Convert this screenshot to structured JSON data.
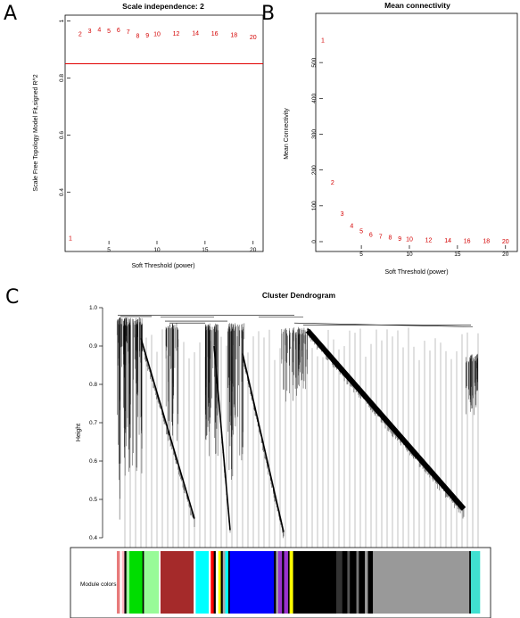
{
  "panels": {
    "a": "A",
    "b": "B",
    "c": "C"
  },
  "chart_data": [
    {
      "type": "scatter",
      "title": "Scale independence: 2",
      "xlabel": "Soft Threshold (power)",
      "ylabel": "Scale Free Topology Model Fit,signed R^2",
      "xlim": [
        1,
        20.3
      ],
      "ylim": [
        0.23,
        1.0
      ],
      "xticks": [
        5,
        10,
        15,
        20
      ],
      "yticks": [
        0.4,
        0.6,
        0.8,
        1.0
      ],
      "marker": "point labels",
      "x": [
        1,
        2,
        3,
        4,
        5,
        6,
        7,
        8,
        9,
        10,
        12,
        14,
        16,
        18,
        20
      ],
      "y": [
        0.24,
        0.955,
        0.965,
        0.97,
        0.965,
        0.968,
        0.962,
        0.948,
        0.95,
        0.955,
        0.957,
        0.958,
        0.957,
        0.952,
        0.943
      ],
      "point_labels": [
        "1",
        "2",
        "3",
        "4",
        "5",
        "6",
        "7",
        "8",
        "9",
        "10",
        "12",
        "14",
        "16",
        "18",
        "20"
      ],
      "hline": 0.85,
      "hline_color": "#e00000",
      "point_color": "#d40000"
    },
    {
      "type": "scatter",
      "title": "Mean connectivity",
      "xlabel": "Soft Threshold (power)",
      "ylabel": "Mean Connectivity",
      "xlim": [
        1,
        20.3
      ],
      "ylim": [
        -10,
        600
      ],
      "xticks": [
        5,
        10,
        15,
        20
      ],
      "yticks": [
        0,
        100,
        200,
        300,
        400,
        500
      ],
      "marker": "point labels",
      "x": [
        1,
        2,
        3,
        4,
        5,
        6,
        7,
        8,
        9,
        10,
        12,
        14,
        16,
        18,
        20
      ],
      "y": [
        563,
        165,
        78,
        45,
        30,
        20,
        15,
        12,
        9,
        7,
        5,
        3.5,
        2.5,
        2,
        1.5
      ],
      "point_labels": [
        "1",
        "2",
        "3",
        "4",
        "5",
        "6",
        "7",
        "8",
        "9",
        "10",
        "12",
        "14",
        "16",
        "18",
        "20"
      ],
      "point_color": "#d40000"
    },
    {
      "type": "dendrogram",
      "title": "Cluster Dendrogram",
      "ylabel": "Height",
      "ylim": [
        0.4,
        1.0
      ],
      "yticks": [
        0.4,
        0.5,
        0.6,
        0.7,
        0.8,
        0.9,
        1.0
      ],
      "color_bar_label": "Module colors",
      "module_colors": [
        {
          "color": "#e87a7a",
          "width": 0.6
        },
        {
          "color": "#ffffff",
          "width": 0.4
        },
        {
          "color": "#ffb6c1",
          "width": 0.5
        },
        {
          "color": "#000000",
          "width": 0.4
        },
        {
          "color": "#98fb98",
          "width": 0.6
        },
        {
          "color": "#00dd00",
          "width": 2.6
        },
        {
          "color": "#000000",
          "width": 0.3
        },
        {
          "color": "#98fb98",
          "width": 3.0
        },
        {
          "color": "#ffffff",
          "width": 0.3
        },
        {
          "color": "#a52a2a",
          "width": 6.6
        },
        {
          "color": "#ffffff",
          "width": 0.4
        },
        {
          "color": "#00ffff",
          "width": 2.6
        },
        {
          "color": "#ffffff",
          "width": 0.4
        },
        {
          "color": "#ff0000",
          "width": 0.6
        },
        {
          "color": "#000000",
          "width": 0.4
        },
        {
          "color": "#ffffff",
          "width": 0.5
        },
        {
          "color": "#ffff00",
          "width": 0.5
        },
        {
          "color": "#000000",
          "width": 0.4
        },
        {
          "color": "#aaaaaa",
          "width": 0.5
        },
        {
          "color": "#00ffff",
          "width": 0.6
        },
        {
          "color": "#000000",
          "width": 0.3
        },
        {
          "color": "#0000ff",
          "width": 8.8
        },
        {
          "color": "#000000",
          "width": 0.4
        },
        {
          "color": "#aaaaaa",
          "width": 0.4
        },
        {
          "color": "#9932cc",
          "width": 0.8
        },
        {
          "color": "#000000",
          "width": 0.4
        },
        {
          "color": "#9932cc",
          "width": 0.8
        },
        {
          "color": "#000000",
          "width": 0.3
        },
        {
          "color": "#ffff00",
          "width": 0.7
        },
        {
          "color": "#000000",
          "width": 8.6
        },
        {
          "color": "#333333",
          "width": 1.2
        },
        {
          "color": "#000000",
          "width": 1.0
        },
        {
          "color": "#555555",
          "width": 0.5
        },
        {
          "color": "#000000",
          "width": 1.3
        },
        {
          "color": "#777777",
          "width": 0.5
        },
        {
          "color": "#000000",
          "width": 1.2
        },
        {
          "color": "#999999",
          "width": 0.6
        },
        {
          "color": "#000000",
          "width": 1.0
        },
        {
          "color": "#999999",
          "width": 19.2
        },
        {
          "color": "#000000",
          "width": 0.3
        },
        {
          "color": "#40e0d0",
          "width": 1.8
        }
      ],
      "line_color": "#000000"
    }
  ]
}
